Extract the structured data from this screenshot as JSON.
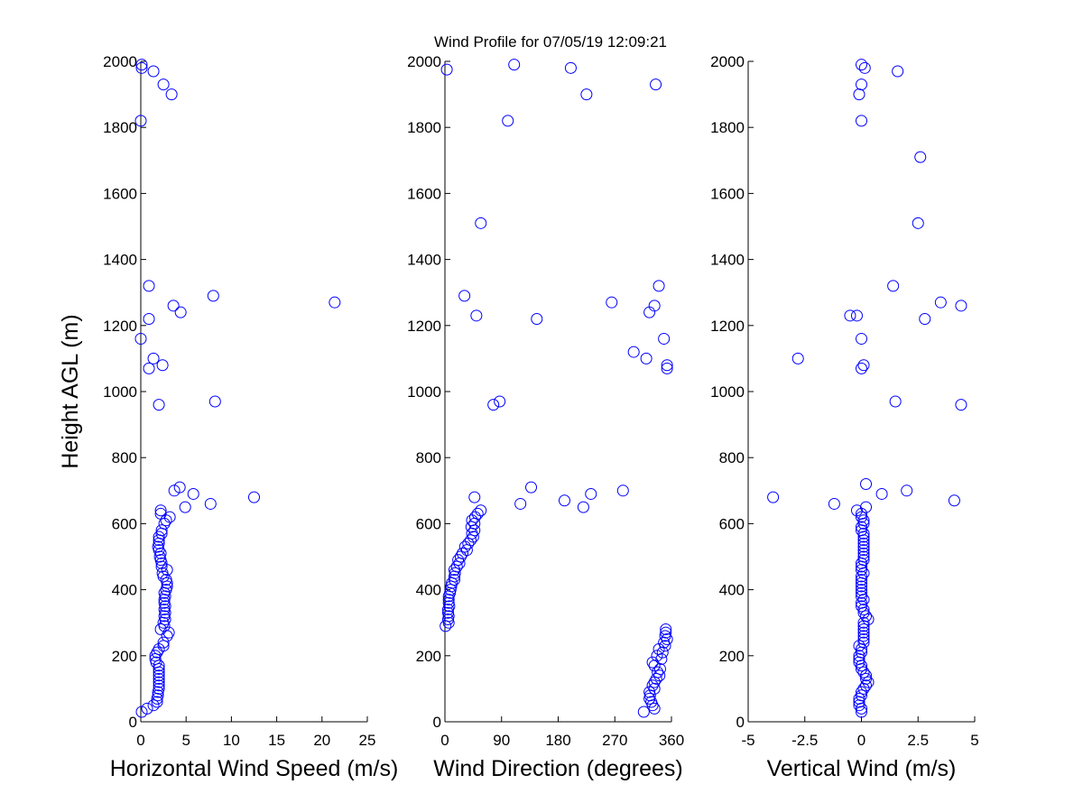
{
  "title": "Wind Profile for  07/05/19 12:09:21",
  "colors": {
    "marker": "#0000ff",
    "axis": "#000000"
  },
  "chart_data": [
    {
      "type": "scatter",
      "xlabel": "Horizontal Wind Speed (m/s)",
      "ylabel": "Height AGL (m)",
      "xlim": [
        0,
        25
      ],
      "ylim": [
        0,
        2000
      ],
      "xticks": [
        0,
        5,
        10,
        15,
        20,
        25
      ],
      "xtick_labels": [
        "0",
        "5",
        "10",
        "15",
        "20",
        "25"
      ],
      "yticks": [
        0,
        200,
        400,
        600,
        800,
        1000,
        1200,
        1400,
        1600,
        1800,
        2000
      ],
      "ytick_labels": [
        "0",
        "200",
        "400",
        "600",
        "800",
        "1000",
        "1200",
        "1400",
        "1600",
        "1800",
        "2000"
      ],
      "grid": false,
      "marker": "open-circle",
      "points": [
        [
          0.1,
          1990
        ],
        [
          0.1,
          1980
        ],
        [
          1.4,
          1970
        ],
        [
          2.5,
          1930
        ],
        [
          3.4,
          1900
        ],
        [
          0.0,
          1820
        ],
        [
          0.9,
          1320
        ],
        [
          8.0,
          1290
        ],
        [
          21.4,
          1270
        ],
        [
          3.6,
          1260
        ],
        [
          4.4,
          1240
        ],
        [
          0.9,
          1220
        ],
        [
          0.0,
          1160
        ],
        [
          1.4,
          1100
        ],
        [
          2.4,
          1080
        ],
        [
          0.9,
          1070
        ],
        [
          8.2,
          970
        ],
        [
          2.0,
          960
        ],
        [
          4.3,
          710
        ],
        [
          3.7,
          700
        ],
        [
          5.8,
          690
        ],
        [
          12.5,
          680
        ],
        [
          7.7,
          660
        ],
        [
          4.9,
          650
        ],
        [
          2.2,
          640
        ],
        [
          2.2,
          630
        ],
        [
          3.2,
          620
        ],
        [
          2.8,
          610
        ],
        [
          2.6,
          600
        ],
        [
          2.3,
          580
        ],
        [
          2.3,
          570
        ],
        [
          2.0,
          560
        ],
        [
          2.0,
          550
        ],
        [
          2.0,
          540
        ],
        [
          1.9,
          530
        ],
        [
          2.0,
          520
        ],
        [
          2.2,
          510
        ],
        [
          2.1,
          500
        ],
        [
          2.2,
          490
        ],
        [
          2.3,
          480
        ],
        [
          2.3,
          470
        ],
        [
          2.9,
          460
        ],
        [
          2.4,
          450
        ],
        [
          2.5,
          440
        ],
        [
          2.8,
          430
        ],
        [
          2.9,
          420
        ],
        [
          2.9,
          410
        ],
        [
          2.8,
          400
        ],
        [
          2.6,
          390
        ],
        [
          2.7,
          380
        ],
        [
          2.6,
          370
        ],
        [
          2.6,
          360
        ],
        [
          2.7,
          350
        ],
        [
          2.6,
          340
        ],
        [
          2.7,
          330
        ],
        [
          2.6,
          320
        ],
        [
          2.7,
          310
        ],
        [
          2.5,
          300
        ],
        [
          2.6,
          290
        ],
        [
          2.2,
          280
        ],
        [
          3.1,
          270
        ],
        [
          2.9,
          260
        ],
        [
          2.5,
          240
        ],
        [
          2.5,
          230
        ],
        [
          2.0,
          220
        ],
        [
          1.8,
          210
        ],
        [
          1.6,
          200
        ],
        [
          1.6,
          190
        ],
        [
          1.7,
          180
        ],
        [
          2.0,
          170
        ],
        [
          2.0,
          160
        ],
        [
          2.0,
          150
        ],
        [
          2.0,
          140
        ],
        [
          2.0,
          130
        ],
        [
          2.0,
          120
        ],
        [
          2.0,
          110
        ],
        [
          2.0,
          100
        ],
        [
          1.9,
          90
        ],
        [
          1.9,
          80
        ],
        [
          1.8,
          70
        ],
        [
          1.8,
          60
        ],
        [
          1.4,
          50
        ],
        [
          0.7,
          40
        ],
        [
          0.1,
          30
        ]
      ]
    },
    {
      "type": "scatter",
      "xlabel": "Wind Direction (degrees)",
      "ylabel": "",
      "xlim": [
        0,
        360
      ],
      "ylim": [
        0,
        2000
      ],
      "xticks": [
        0,
        90,
        180,
        270,
        360
      ],
      "xtick_labels": [
        "0",
        "90",
        "180",
        "270",
        "360"
      ],
      "yticks": [
        0,
        200,
        400,
        600,
        800,
        1000,
        1200,
        1400,
        1600,
        1800,
        2000
      ],
      "ytick_labels": [
        "0",
        "200",
        "400",
        "600",
        "800",
        "1000",
        "1200",
        "1400",
        "1600",
        "1800",
        "2000"
      ],
      "grid": false,
      "marker": "open-circle",
      "points": [
        [
          110,
          1990
        ],
        [
          200,
          1980
        ],
        [
          3,
          1975
        ],
        [
          335,
          1930
        ],
        [
          225,
          1900
        ],
        [
          100,
          1820
        ],
        [
          57,
          1510
        ],
        [
          340,
          1320
        ],
        [
          31,
          1290
        ],
        [
          265,
          1270
        ],
        [
          333,
          1260
        ],
        [
          325,
          1240
        ],
        [
          50,
          1230
        ],
        [
          146,
          1220
        ],
        [
          348,
          1160
        ],
        [
          300,
          1120
        ],
        [
          320,
          1100
        ],
        [
          353,
          1080
        ],
        [
          353,
          1070
        ],
        [
          87,
          970
        ],
        [
          77,
          960
        ],
        [
          137,
          710
        ],
        [
          283,
          700
        ],
        [
          232,
          690
        ],
        [
          47,
          680
        ],
        [
          190,
          670
        ],
        [
          120,
          660
        ],
        [
          220,
          650
        ],
        [
          57,
          640
        ],
        [
          52,
          630
        ],
        [
          48,
          620
        ],
        [
          43,
          610
        ],
        [
          47,
          600
        ],
        [
          42,
          590
        ],
        [
          47,
          580
        ],
        [
          43,
          570
        ],
        [
          45,
          560
        ],
        [
          41,
          550
        ],
        [
          37,
          540
        ],
        [
          32,
          530
        ],
        [
          35,
          520
        ],
        [
          28,
          510
        ],
        [
          25,
          500
        ],
        [
          21,
          490
        ],
        [
          23,
          480
        ],
        [
          19,
          470
        ],
        [
          15,
          460
        ],
        [
          16,
          450
        ],
        [
          15,
          440
        ],
        [
          15,
          430
        ],
        [
          11,
          420
        ],
        [
          10,
          410
        ],
        [
          9,
          400
        ],
        [
          8,
          390
        ],
        [
          6,
          380
        ],
        [
          6,
          370
        ],
        [
          6,
          360
        ],
        [
          7,
          350
        ],
        [
          5,
          340
        ],
        [
          5,
          330
        ],
        [
          6,
          320
        ],
        [
          5,
          310
        ],
        [
          6,
          300
        ],
        [
          1,
          290
        ],
        [
          351,
          280
        ],
        [
          351,
          270
        ],
        [
          350,
          260
        ],
        [
          353,
          250
        ],
        [
          348,
          240
        ],
        [
          350,
          230
        ],
        [
          340,
          220
        ],
        [
          346,
          210
        ],
        [
          337,
          200
        ],
        [
          344,
          190
        ],
        [
          330,
          180
        ],
        [
          333,
          170
        ],
        [
          342,
          160
        ],
        [
          338,
          150
        ],
        [
          341,
          140
        ],
        [
          336,
          130
        ],
        [
          333,
          120
        ],
        [
          330,
          110
        ],
        [
          333,
          100
        ],
        [
          325,
          90
        ],
        [
          326,
          80
        ],
        [
          325,
          70
        ],
        [
          328,
          60
        ],
        [
          330,
          50
        ],
        [
          333,
          40
        ],
        [
          316,
          30
        ]
      ]
    },
    {
      "type": "scatter",
      "xlabel": "Vertical Wind (m/s)",
      "ylabel": "",
      "xlim": [
        -5,
        5
      ],
      "ylim": [
        0,
        2000
      ],
      "xticks": [
        -5,
        -2.5,
        0,
        2.5,
        5
      ],
      "xtick_labels": [
        "-5",
        "-2.5",
        "0",
        "2.5",
        "5"
      ],
      "yticks": [
        0,
        200,
        400,
        600,
        800,
        1000,
        1200,
        1400,
        1600,
        1800,
        2000
      ],
      "ytick_labels": [
        "0",
        "200",
        "400",
        "600",
        "800",
        "1000",
        "1200",
        "1400",
        "1600",
        "1800",
        "2000"
      ],
      "grid": false,
      "marker": "open-circle",
      "points": [
        [
          0.0,
          1990
        ],
        [
          0.15,
          1980
        ],
        [
          1.6,
          1970
        ],
        [
          0.0,
          1930
        ],
        [
          -0.1,
          1900
        ],
        [
          0.0,
          1820
        ],
        [
          2.6,
          1710
        ],
        [
          2.5,
          1510
        ],
        [
          1.4,
          1320
        ],
        [
          3.5,
          1270
        ],
        [
          4.4,
          1260
        ],
        [
          -0.2,
          1230
        ],
        [
          2.8,
          1220
        ],
        [
          -0.5,
          1230
        ],
        [
          0.0,
          1160
        ],
        [
          -2.8,
          1100
        ],
        [
          0.1,
          1080
        ],
        [
          0.0,
          1070
        ],
        [
          1.5,
          970
        ],
        [
          4.4,
          960
        ],
        [
          0.2,
          720
        ],
        [
          2.0,
          700
        ],
        [
          0.9,
          690
        ],
        [
          -3.9,
          680
        ],
        [
          4.1,
          670
        ],
        [
          -1.2,
          660
        ],
        [
          0.2,
          650
        ],
        [
          -0.2,
          640
        ],
        [
          0.0,
          630
        ],
        [
          0.0,
          620
        ],
        [
          0.1,
          610
        ],
        [
          0.1,
          600
        ],
        [
          0.0,
          590
        ],
        [
          0.0,
          580
        ],
        [
          0.1,
          570
        ],
        [
          0.1,
          560
        ],
        [
          0.1,
          550
        ],
        [
          0.1,
          540
        ],
        [
          0.1,
          530
        ],
        [
          0.1,
          520
        ],
        [
          0.1,
          510
        ],
        [
          0.1,
          500
        ],
        [
          0.1,
          490
        ],
        [
          0.0,
          480
        ],
        [
          0.0,
          470
        ],
        [
          0.0,
          460
        ],
        [
          0.1,
          450
        ],
        [
          0.0,
          440
        ],
        [
          0.0,
          430
        ],
        [
          0.0,
          420
        ],
        [
          0.0,
          410
        ],
        [
          0.0,
          400
        ],
        [
          0.0,
          390
        ],
        [
          0.0,
          380
        ],
        [
          0.1,
          370
        ],
        [
          0.0,
          360
        ],
        [
          0.0,
          350
        ],
        [
          0.1,
          340
        ],
        [
          0.1,
          330
        ],
        [
          0.2,
          320
        ],
        [
          0.3,
          310
        ],
        [
          0.1,
          300
        ],
        [
          0.1,
          290
        ],
        [
          0.1,
          280
        ],
        [
          0.1,
          270
        ],
        [
          0.1,
          260
        ],
        [
          0.1,
          250
        ],
        [
          0.1,
          240
        ],
        [
          -0.1,
          230
        ],
        [
          0.0,
          220
        ],
        [
          0.0,
          210
        ],
        [
          -0.1,
          200
        ],
        [
          -0.1,
          190
        ],
        [
          -0.1,
          180
        ],
        [
          0.0,
          170
        ],
        [
          0.0,
          160
        ],
        [
          0.1,
          150
        ],
        [
          0.2,
          140
        ],
        [
          0.2,
          130
        ],
        [
          0.3,
          120
        ],
        [
          0.2,
          110
        ],
        [
          0.1,
          100
        ],
        [
          0.0,
          90
        ],
        [
          0.0,
          80
        ],
        [
          -0.1,
          70
        ],
        [
          -0.1,
          60
        ],
        [
          -0.1,
          50
        ],
        [
          0.0,
          40
        ],
        [
          0.0,
          30
        ]
      ]
    }
  ]
}
